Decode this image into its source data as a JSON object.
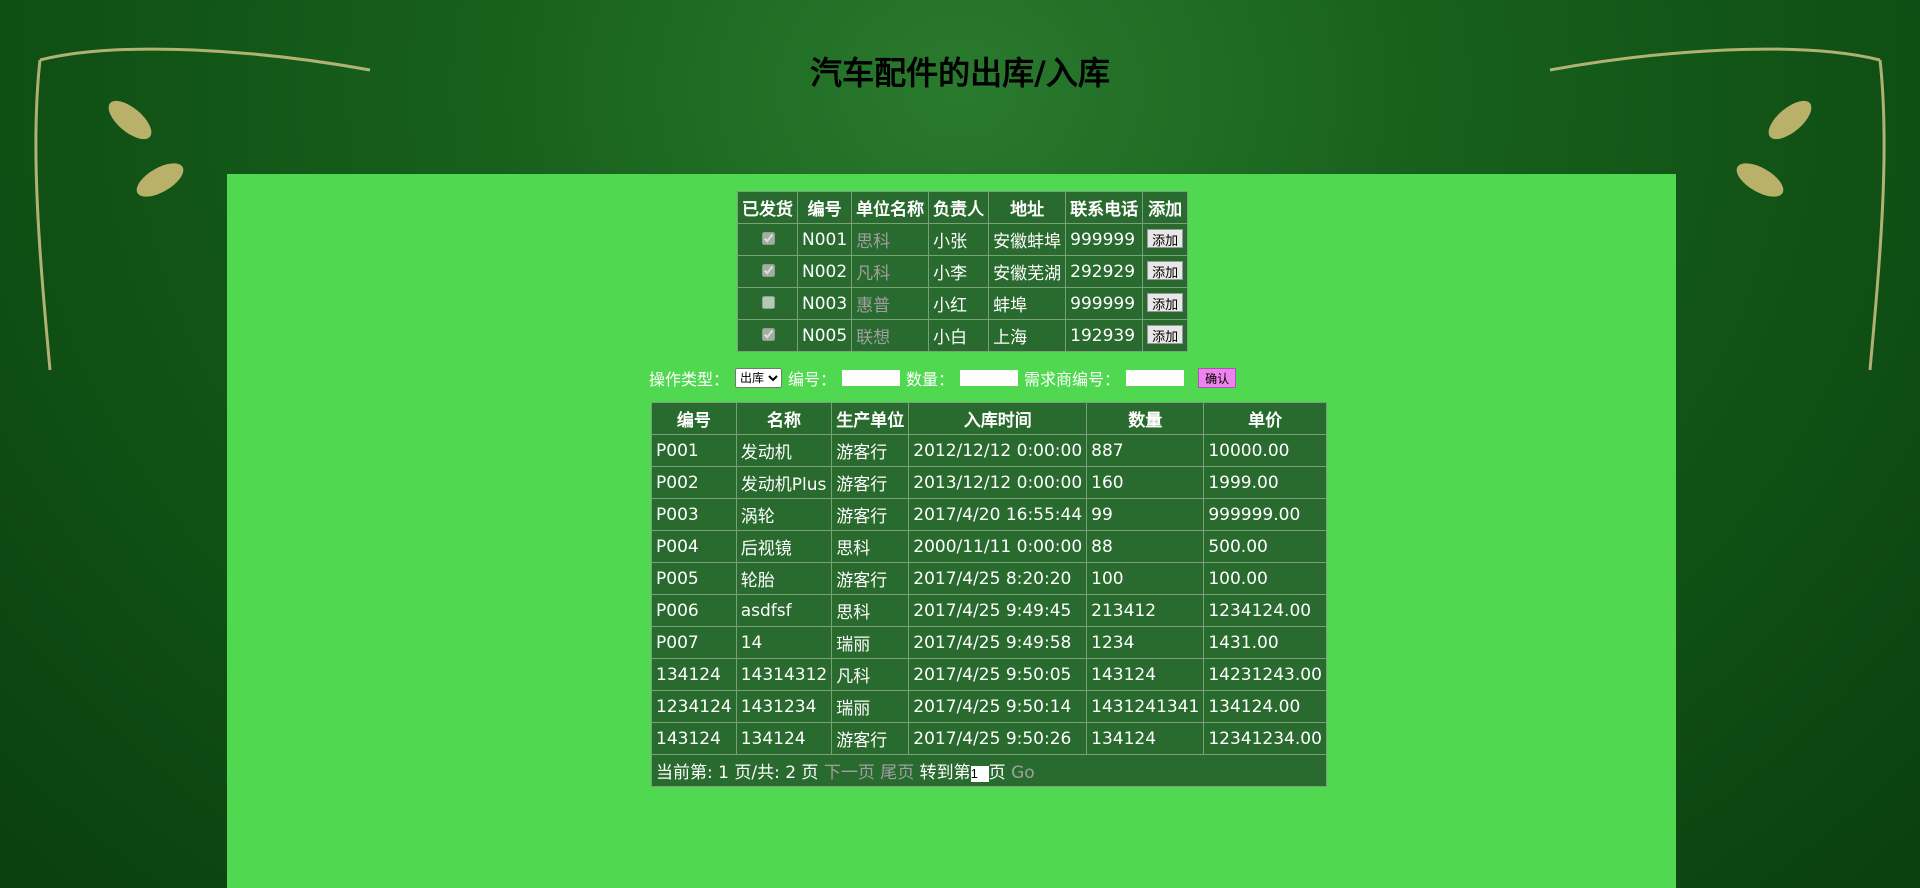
{
  "title": "汽车配件的出库/入库",
  "suppliers": {
    "headers": [
      "已发货",
      "编号",
      "单位名称",
      "负责人",
      "地址",
      "联系电话",
      "添加"
    ],
    "button": "添加",
    "rows": [
      {
        "shipped": true,
        "id": "N001",
        "name": "思科",
        "contact": "小张",
        "address": "安徽蚌埠",
        "phone": "999999"
      },
      {
        "shipped": true,
        "id": "N002",
        "name": "凡科",
        "contact": "小李",
        "address": "安徽芜湖",
        "phone": "292929"
      },
      {
        "shipped": false,
        "id": "N003",
        "name": "惠普",
        "contact": "小红",
        "address": "蚌埠",
        "phone": "999999"
      },
      {
        "shipped": true,
        "id": "N005",
        "name": "联想",
        "contact": "小白",
        "address": "上海",
        "phone": "192939"
      }
    ]
  },
  "form": {
    "type_label": "操作类型：",
    "type_value": "出库",
    "id_label": "编号：",
    "qty_label": "数量：",
    "buyer_label": "需求商编号：",
    "submit": "确认"
  },
  "parts": {
    "headers": [
      "编号",
      "名称",
      "生产单位",
      "入库时间",
      "数量",
      "单价"
    ],
    "rows": [
      [
        "P001",
        "发动机",
        "游客行",
        "2012/12/12 0:00:00",
        "887",
        "10000.00"
      ],
      [
        "P002",
        "发动机Plus",
        "游客行",
        "2013/12/12 0:00:00",
        "160",
        "1999.00"
      ],
      [
        "P003",
        "涡轮",
        "游客行",
        "2017/4/20 16:55:44",
        "99",
        "999999.00"
      ],
      [
        "P004",
        "后视镜",
        "思科",
        "2000/11/11 0:00:00",
        "88",
        "500.00"
      ],
      [
        "P005",
        "轮胎",
        "游客行",
        "2017/4/25 8:20:20",
        "100",
        "100.00"
      ],
      [
        "P006",
        "asdfsf",
        "思科",
        "2017/4/25 9:49:45",
        "213412",
        "1234124.00"
      ],
      [
        "P007",
        "14",
        "瑞丽",
        "2017/4/25 9:49:58",
        "1234",
        "1431.00"
      ],
      [
        "134124",
        "14314312",
        "凡科",
        "2017/4/25 9:50:05",
        "143124",
        "14231243.00"
      ],
      [
        "1234124",
        "1431234",
        "瑞丽",
        "2017/4/25 9:50:14",
        "1431241341",
        "134124.00"
      ],
      [
        "143124",
        "134124",
        "游客行",
        "2017/4/25 9:50:26",
        "134124",
        "12341234.00"
      ]
    ]
  },
  "pager": {
    "status": "当前第: 1 页/共: 2 页",
    "next": "下一页",
    "last": "尾页",
    "goto": "转到第",
    "page_input": "1",
    "page_unit": "页",
    "go": "Go"
  }
}
